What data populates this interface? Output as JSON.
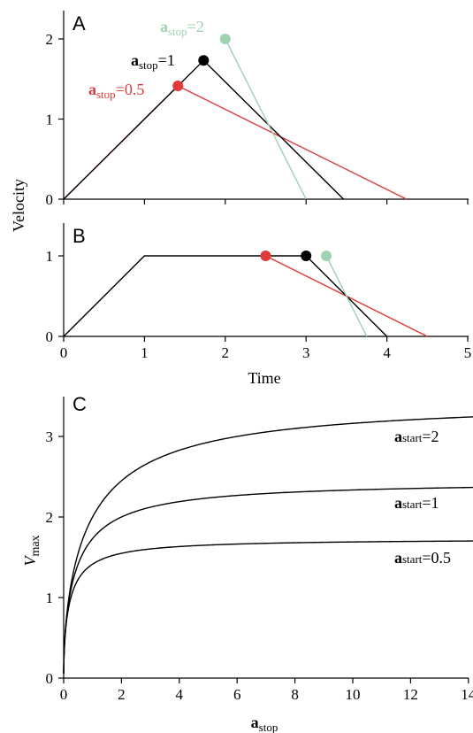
{
  "chart_data": [
    {
      "panel": "A",
      "type": "line",
      "xlabel": "",
      "ylabel": "Velocity",
      "xlim": [
        0,
        5
      ],
      "ylim": [
        0,
        2.2
      ],
      "xticks": [
        0,
        1,
        2,
        3,
        4,
        5
      ],
      "yticks": [
        0,
        1,
        2
      ],
      "show_x_tick_labels": false,
      "series": [
        {
          "name": "a_stop=0.5",
          "color": "#e03a3a",
          "points": [
            [
              0,
              0
            ],
            [
              1.414,
              1.414
            ],
            [
              4.243,
              0
            ]
          ],
          "marker": [
            1.414,
            1.414
          ],
          "label": {
            "bold": "a",
            "sub": "stop",
            "rest": "=0.5"
          }
        },
        {
          "name": "a_stop=1",
          "color": "#000000",
          "points": [
            [
              0,
              0
            ],
            [
              1.732,
              1.732
            ],
            [
              3.464,
              0
            ]
          ],
          "marker": [
            1.732,
            1.732
          ],
          "label": {
            "bold": "a",
            "sub": "stop",
            "rest": "=1"
          }
        },
        {
          "name": "a_stop=2",
          "color": "#9fd2b0",
          "points": [
            [
              2.0,
              2.0
            ],
            [
              3.0,
              0
            ]
          ],
          "marker": [
            2.0,
            2.0
          ],
          "label": {
            "bold": "a",
            "sub": "stop",
            "rest": "=2"
          }
        }
      ]
    },
    {
      "panel": "B",
      "type": "line",
      "xlabel": "Time",
      "ylabel": "",
      "xlim": [
        0,
        5
      ],
      "ylim": [
        0,
        1.1
      ],
      "xticks": [
        0,
        1,
        2,
        3,
        4,
        5
      ],
      "yticks": [
        0,
        1
      ],
      "show_x_tick_labels": true,
      "series": [
        {
          "name": "a_stop=0.5",
          "color": "#e03a3a",
          "points": [
            [
              2.5,
              1
            ],
            [
              4.5,
              0
            ]
          ],
          "marker": [
            2.5,
            1
          ]
        },
        {
          "name": "a_stop=1",
          "color": "#000000",
          "points": [
            [
              0,
              0
            ],
            [
              1,
              1
            ],
            [
              3,
              1
            ],
            [
              4,
              0
            ]
          ],
          "marker": [
            3,
            1
          ]
        },
        {
          "name": "a_stop=2",
          "color": "#9fd2b0",
          "points": [
            [
              3.25,
              1
            ],
            [
              3.75,
              0
            ]
          ],
          "marker": [
            3.25,
            1
          ]
        }
      ]
    },
    {
      "panel": "C",
      "type": "line",
      "xlabel": "a_stop",
      "ylabel": "V_max",
      "xlim": [
        0,
        14.5
      ],
      "ylim": [
        0,
        3.5
      ],
      "xticks": [
        0,
        2,
        4,
        6,
        8,
        10,
        12,
        14
      ],
      "yticks": [
        0,
        1,
        2,
        3
      ],
      "series": [
        {
          "name": "a_start=2",
          "color": "#000000",
          "a_start": 2,
          "label": {
            "bold": "a",
            "sub": "start",
            "rest": "=2"
          }
        },
        {
          "name": "a_start=1",
          "color": "#000000",
          "a_start": 1,
          "label": {
            "bold": "a",
            "sub": "start",
            "rest": "=1"
          }
        },
        {
          "name": "a_start=0.5",
          "color": "#000000",
          "a_start": 0.5,
          "label": {
            "bold": "a",
            "sub": "start",
            "rest": "=0.5"
          }
        }
      ]
    }
  ],
  "labels": {
    "panel_a": "A",
    "panel_b": "B",
    "panel_c": "C",
    "velocity": "Velocity",
    "time": "Time",
    "vmax_main": "V",
    "vmax_sub": "max",
    "astop_main": "a",
    "astop_sub": "stop"
  }
}
